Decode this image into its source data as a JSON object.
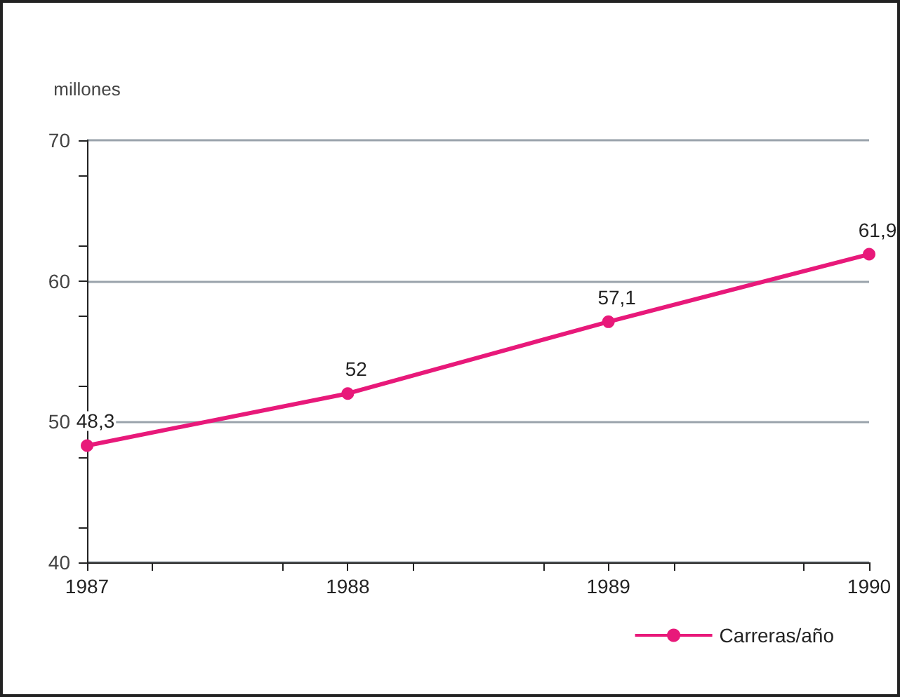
{
  "chart_data": {
    "type": "line",
    "ylabel": "millones",
    "x": [
      1987,
      1988,
      1989,
      1990
    ],
    "series": [
      {
        "name": "Carreras/año",
        "color": "#e8197a",
        "values": [
          48.3,
          52,
          57.1,
          61.9
        ],
        "value_labels": [
          "48,3",
          "52",
          "57,1",
          "61,9"
        ]
      }
    ],
    "xlim": [
      1987,
      1990
    ],
    "xticks": [
      1987,
      1988,
      1989,
      1990
    ],
    "ylim": [
      40,
      70
    ],
    "yticks": [
      40,
      50,
      60,
      70
    ],
    "grid": "y",
    "legend": "bottom right",
    "marker": "circle",
    "line_style": "solid"
  }
}
